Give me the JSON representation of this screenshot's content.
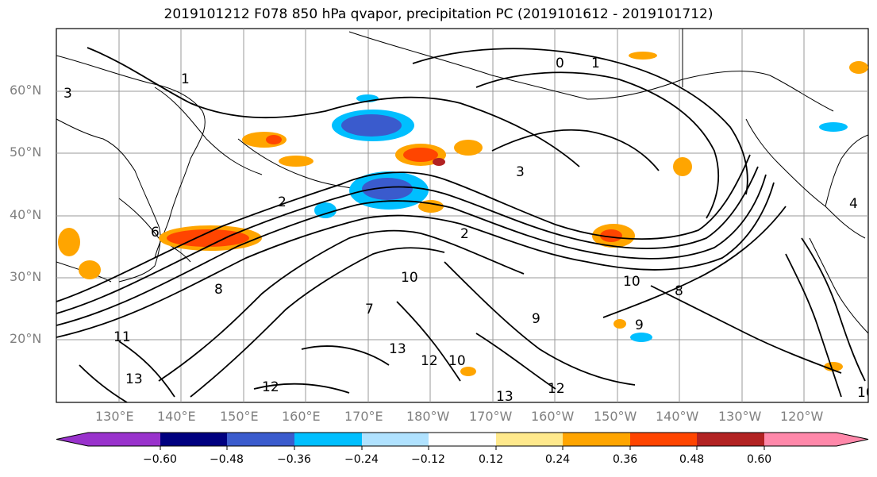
{
  "title": "2019101212 F078 850 hPa qvapor, precipitation PC (2019101612 - 2019101712)",
  "map": {
    "lat_labels": [
      "60°N",
      "50°N",
      "40°N",
      "30°N",
      "20°N"
    ],
    "lon_labels": [
      "130°E",
      "140°E",
      "150°E",
      "160°E",
      "170°E",
      "180°W",
      "170°W",
      "160°W",
      "150°W",
      "140°W",
      "130°W",
      "120°W"
    ],
    "contour_labels": [
      "1",
      "3",
      "2",
      "8",
      "6",
      "10",
      "11",
      "13",
      "12",
      "9",
      "0",
      "4",
      "2",
      "3",
      "10",
      "8",
      "12",
      "13",
      "1",
      "10",
      "7",
      "9",
      "13",
      "12",
      "10"
    ]
  },
  "colorbar": {
    "ticks": [
      "−0.60",
      "−0.48",
      "−0.36",
      "−0.24",
      "−0.12",
      "0.12",
      "0.24",
      "0.36",
      "0.48",
      "0.60"
    ],
    "colors": [
      "#9932cc",
      "#000080",
      "#3a5bcd",
      "#00bfff",
      "#b0e2ff",
      "#ffffff",
      "#ffe98c",
      "#ffa500",
      "#ff4500",
      "#b22222",
      "#ff88aa"
    ]
  }
}
